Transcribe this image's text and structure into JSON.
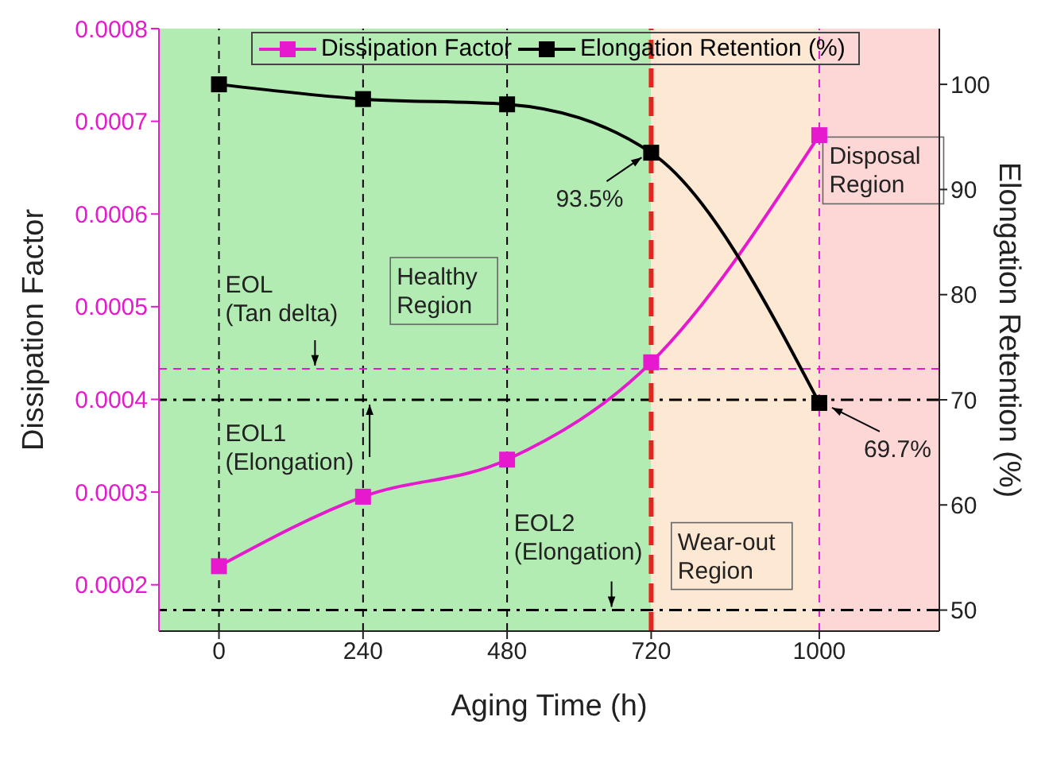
{
  "chart_data": {
    "type": "line",
    "xlabel": "Aging Time (h)",
    "ylabel": "Dissipation Factor",
    "y2label": "Elongation Retention (%)",
    "x": [
      0,
      240,
      480,
      720,
      1000
    ],
    "series": [
      {
        "name": "Dissipation Factor",
        "color": "#e619cf",
        "values": [
          0.00022,
          0.000295,
          0.000335,
          0.00044,
          0.000685
        ]
      },
      {
        "name": "Elongation Retention (%)",
        "color": "#000000",
        "axis": "y2",
        "values": [
          100,
          98.6,
          98.1,
          93.5,
          69.7
        ],
        "value_labels": [
          null,
          null,
          null,
          "93.5%",
          "69.7%"
        ]
      }
    ],
    "xlim": [
      -100,
      1200
    ],
    "xticks": [
      0,
      240,
      480,
      720,
      1000
    ],
    "ylim": [
      0.00015,
      0.0008
    ],
    "yticks": [
      0.0002,
      0.0003,
      0.0004,
      0.0005,
      0.0006,
      0.0007,
      0.0008
    ],
    "y2lim": [
      48,
      105.3
    ],
    "y2ticks": [
      50,
      60,
      70,
      80,
      90,
      100
    ],
    "bands": [
      {
        "axis": "x",
        "from": -100,
        "to": 720,
        "label": "Healthy\nRegion",
        "color": "#b3ecb3"
      },
      {
        "axis": "x",
        "from": 720,
        "to": 1000,
        "label": "Wear-out\nRegion",
        "color": "#fde8d4"
      },
      {
        "axis": "x",
        "from": 1000,
        "to": 1200,
        "label": "Disposal\nRegion",
        "color": "#fdd6d6"
      }
    ],
    "ref_lines": [
      {
        "axis": "x",
        "value": 0,
        "label": null,
        "color": "#000000",
        "line_style": "dashed"
      },
      {
        "axis": "x",
        "value": 240,
        "label": null,
        "color": "#000000",
        "line_style": "dashed"
      },
      {
        "axis": "x",
        "value": 480,
        "label": null,
        "color": "#000000",
        "line_style": "dashed"
      },
      {
        "axis": "x",
        "value": 1000,
        "label": null,
        "color": "#e619cf",
        "line_style": "dashed"
      },
      {
        "axis": "y",
        "value": 0.000433,
        "label": "EOL\n(Tan delta)",
        "color": "#e619cf",
        "line_style": "dashed"
      },
      {
        "axis": "y2",
        "value": 70,
        "label": "EOL1\n(Elongation)",
        "color": "#000000",
        "line_style": "dashdot"
      },
      {
        "axis": "y2",
        "value": 50,
        "label": "EOL2\n(Elongation)",
        "color": "#000000",
        "line_style": "dashdot"
      },
      {
        "axis": "x",
        "value": 720,
        "label": null,
        "color": "#e8221c",
        "line_style": "thickdashed"
      }
    ],
    "legend": "top",
    "marker": "square",
    "line_style": "solid"
  }
}
